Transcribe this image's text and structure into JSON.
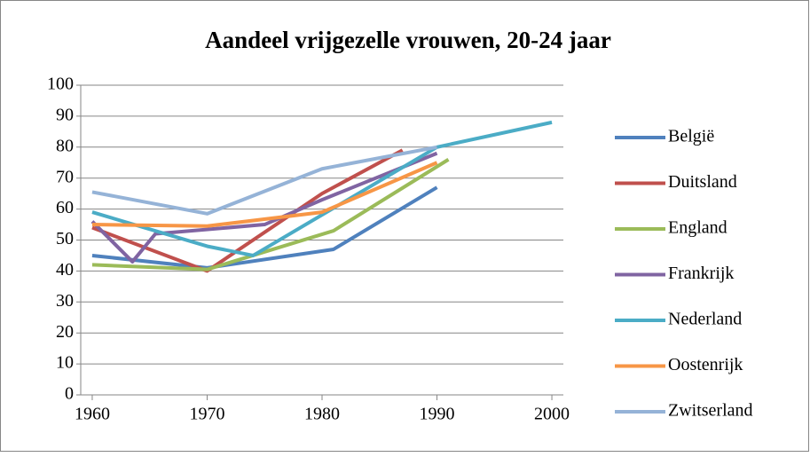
{
  "chart_data": {
    "type": "line",
    "title": "Aandeel vrijgezelle vrouwen, 20-24 jaar",
    "xlim": [
      1959,
      2001
    ],
    "xticks": [
      1960,
      1970,
      1980,
      1990,
      2000
    ],
    "ylim": [
      0,
      100
    ],
    "yticks": [
      0,
      10,
      20,
      30,
      40,
      50,
      60,
      70,
      80,
      90,
      100
    ],
    "grid": true,
    "legend": "right",
    "series": [
      {
        "name": "België",
        "color": "#4F81BD",
        "x": [
          1960,
          1970,
          1981,
          1990
        ],
        "values": [
          45,
          41,
          47,
          67
        ]
      },
      {
        "name": "Duitsland",
        "color": "#C0504D",
        "x": [
          1960,
          1970,
          1980,
          1987
        ],
        "values": [
          54,
          40,
          65,
          79
        ]
      },
      {
        "name": "England",
        "color": "#9BBB59",
        "x": [
          1960,
          1970,
          1981,
          1991
        ],
        "values": [
          42,
          40.5,
          53,
          76
        ]
      },
      {
        "name": "Frankrijk",
        "color": "#8064A2",
        "x": [
          1960,
          1963.5,
          1965.5,
          1975,
          1980,
          1990
        ],
        "values": [
          56,
          43,
          52,
          55,
          63,
          78
        ]
      },
      {
        "name": "Nederland",
        "color": "#4BACC6",
        "x": [
          1960,
          1970,
          1974,
          1990,
          2000
        ],
        "values": [
          59,
          48,
          45,
          80,
          88
        ]
      },
      {
        "name": "Oostenrijk",
        "color": "#F79646",
        "x": [
          1960,
          1970,
          1980,
          1990
        ],
        "values": [
          55,
          54.5,
          59,
          75
        ]
      },
      {
        "name": "Zwitserland",
        "color": "#95B3D7",
        "x": [
          1960,
          1970,
          1980,
          1990
        ],
        "values": [
          65.5,
          58.5,
          73,
          80
        ]
      }
    ]
  }
}
